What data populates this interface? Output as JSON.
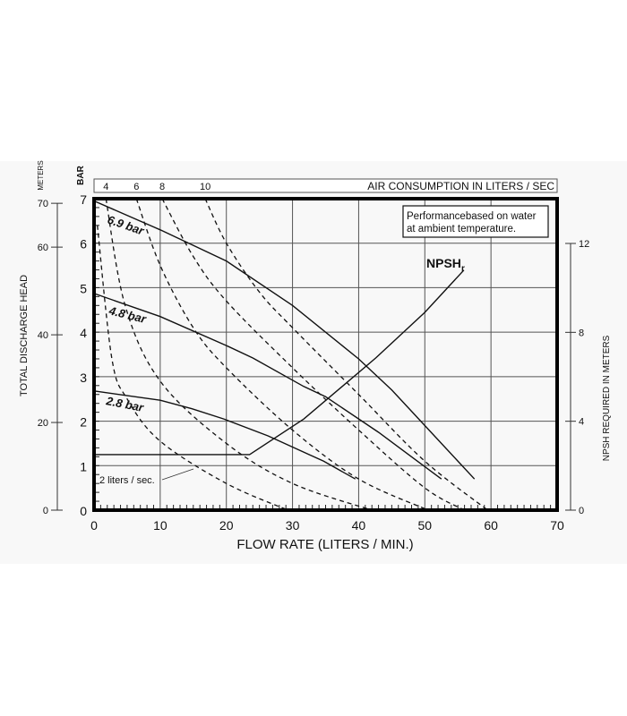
{
  "chart_data": {
    "type": "line",
    "xlabel": "FLOW RATE (LITERS / MIN.)",
    "xlim": [
      0,
      70
    ],
    "x_ticks": [
      0,
      10,
      20,
      30,
      40,
      50,
      60,
      70
    ],
    "ylabel_bar": "BAR",
    "ylim_bar": [
      0,
      7
    ],
    "y_ticks_bar": [
      0,
      1,
      2,
      3,
      4,
      5,
      6,
      7
    ],
    "ylabel_meters_units": "METERS",
    "ylabel_meters": "TOTAL DISCHARGE HEAD",
    "y_ticks_meters": [
      0,
      20,
      40,
      60,
      70
    ],
    "ylabel_right": "NPSH REQUIRED IN METERS",
    "ylim_right": [
      0,
      14
    ],
    "y_ticks_right": [
      0,
      4,
      8,
      12
    ],
    "top_axis_label": "AIR CONSUMPTION IN LITERS / SEC",
    "top_ticks": [
      {
        "label": "4",
        "flow": 1.8
      },
      {
        "label": "6",
        "flow": 6.4
      },
      {
        "label": "8",
        "flow": 10.3
      },
      {
        "label": "10",
        "flow": 16.8
      }
    ],
    "note": [
      "Performancebased on water",
      "at ambient temperature."
    ],
    "pressure_series": [
      {
        "name": "6.9 bar",
        "label": "6.9 bar",
        "points": [
          [
            0,
            6.95
          ],
          [
            10,
            6.3
          ],
          [
            20,
            5.6
          ],
          [
            30,
            4.6
          ],
          [
            40,
            3.4
          ],
          [
            45,
            2.7
          ],
          [
            50,
            1.9
          ],
          [
            57.5,
            0.7
          ]
        ]
      },
      {
        "name": "4.8 bar",
        "label": "4.8 bar",
        "points": [
          [
            0,
            4.87
          ],
          [
            10,
            4.35
          ],
          [
            20,
            3.7
          ],
          [
            24,
            3.42
          ],
          [
            31.7,
            2.78
          ],
          [
            35,
            2.55
          ],
          [
            43,
            1.75
          ],
          [
            52.5,
            0.7
          ]
        ]
      },
      {
        "name": "2.8 bar",
        "label": "2.8 bar",
        "points": [
          [
            0,
            2.68
          ],
          [
            10,
            2.47
          ],
          [
            14.8,
            2.28
          ],
          [
            19.6,
            2.05
          ],
          [
            26.3,
            1.67
          ],
          [
            34.7,
            1.1
          ],
          [
            39.5,
            0.7
          ]
        ]
      }
    ],
    "npsh_series": {
      "name": "NPSHr",
      "label": "NPSH",
      "subscript": "r",
      "points_meters": [
        [
          0,
          2.5
        ],
        [
          23.5,
          2.5
        ],
        [
          31.7,
          4.1
        ],
        [
          42.6,
          6.85
        ],
        [
          50,
          8.9
        ],
        [
          55.9,
          10.8
        ]
      ]
    },
    "air_series": [
      {
        "name": "2 liters / sec.",
        "label": "2 liters / sec.",
        "points": [
          [
            0.5,
            6.4
          ],
          [
            2.7,
            3.4
          ],
          [
            5,
            2.5
          ],
          [
            10,
            1.55
          ],
          [
            20,
            0.6
          ],
          [
            29.3,
            0
          ]
        ]
      },
      {
        "name": "4",
        "points": [
          [
            1.8,
            7
          ],
          [
            4.7,
            4.6
          ],
          [
            10,
            2.9
          ],
          [
            20,
            1.5
          ],
          [
            30,
            0.6
          ],
          [
            42,
            0
          ]
        ]
      },
      {
        "name": "6",
        "points": [
          [
            6.4,
            7
          ],
          [
            10,
            5.5
          ],
          [
            15,
            4.1
          ],
          [
            20,
            3.2
          ],
          [
            30,
            1.8
          ],
          [
            40,
            0.7
          ],
          [
            50.5,
            0
          ]
        ]
      },
      {
        "name": "8",
        "points": [
          [
            10.3,
            7
          ],
          [
            15,
            5.7
          ],
          [
            20,
            4.7
          ],
          [
            30,
            3.2
          ],
          [
            40,
            1.8
          ],
          [
            50,
            0.5
          ],
          [
            56,
            0
          ]
        ]
      },
      {
        "name": "10",
        "points": [
          [
            16.8,
            7
          ],
          [
            20,
            6.0
          ],
          [
            25,
            4.9
          ],
          [
            30,
            4.1
          ],
          [
            40,
            2.6
          ],
          [
            50,
            1.1
          ],
          [
            59.5,
            0
          ]
        ]
      }
    ]
  }
}
